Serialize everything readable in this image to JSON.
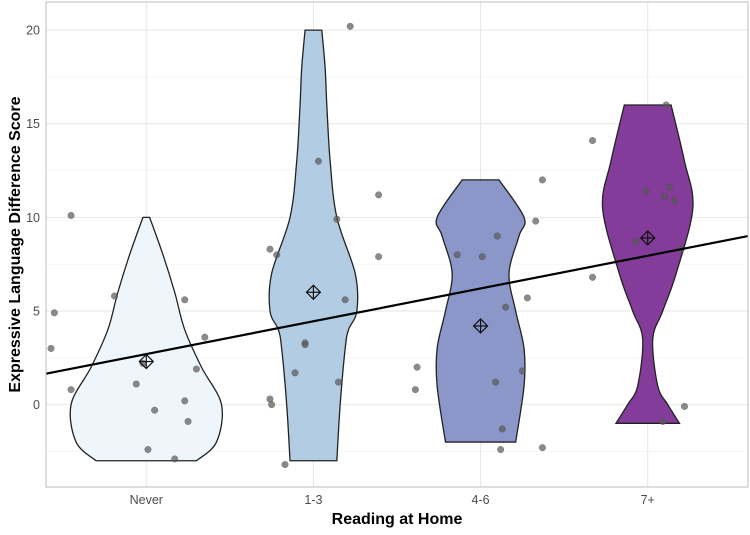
{
  "chart_data": {
    "type": "violin",
    "xlabel": "Reading at Home",
    "ylabel": "Expressive Language Difference Score",
    "categories": [
      "Never",
      "1-3",
      "4-6",
      "7+"
    ],
    "ylim": [
      -4.4,
      21.5
    ],
    "yticks": [
      0,
      5,
      10,
      15,
      20
    ],
    "grid": true,
    "colors": {
      "fills": [
        "#eef6fb",
        "#b2cce3",
        "#8b97c8",
        "#843c9a"
      ],
      "outline": "#222222",
      "points": "#595959",
      "trend_line": "#000000",
      "grid": "#e6e6e6",
      "panel_border": "#bdbdbd"
    },
    "violins": [
      {
        "category": "Never",
        "y": [
          -3,
          -2,
          0,
          2,
          4,
          6,
          8,
          10
        ],
        "half_width": [
          0.3,
          0.42,
          0.45,
          0.33,
          0.23,
          0.17,
          0.1,
          0.02
        ]
      },
      {
        "category": "1-3",
        "y": [
          -3,
          0,
          3,
          4,
          5,
          7,
          10,
          13,
          16,
          18,
          20
        ],
        "half_width": [
          0.14,
          0.16,
          0.19,
          0.21,
          0.26,
          0.25,
          0.14,
          0.1,
          0.08,
          0.07,
          0.05
        ]
      },
      {
        "category": "4-6",
        "y": [
          -2,
          1,
          3,
          5,
          7,
          9,
          10,
          12
        ],
        "half_width": [
          0.21,
          0.26,
          0.26,
          0.21,
          0.17,
          0.23,
          0.26,
          0.11
        ]
      },
      {
        "category": "7+",
        "y": [
          -1,
          0,
          1,
          3.5,
          5,
          7,
          10.5,
          13,
          16
        ],
        "half_width": [
          0.19,
          0.12,
          0.06,
          0.03,
          0.09,
          0.17,
          0.27,
          0.22,
          0.14
        ]
      }
    ],
    "means": [
      {
        "category": "Never",
        "value": 2.3
      },
      {
        "category": "1-3",
        "value": 6.0
      },
      {
        "category": "4-6",
        "value": 4.2
      },
      {
        "category": "7+",
        "value": 8.9
      }
    ],
    "points": [
      {
        "category": "Never",
        "offset": -0.45,
        "value": 10.1
      },
      {
        "category": "Never",
        "offset": -0.55,
        "value": 4.9
      },
      {
        "category": "Never",
        "offset": -0.57,
        "value": 3.0
      },
      {
        "category": "Never",
        "offset": -0.45,
        "value": 0.8
      },
      {
        "category": "Never",
        "offset": -0.19,
        "value": 5.8
      },
      {
        "category": "Never",
        "offset": -0.06,
        "value": 1.1
      },
      {
        "category": "Never",
        "offset": -0.02,
        "value": 2.2
      },
      {
        "category": "Never",
        "offset": 0.05,
        "value": -0.3
      },
      {
        "category": "Never",
        "offset": 0.01,
        "value": -2.4
      },
      {
        "category": "Never",
        "offset": 0.17,
        "value": -2.9
      },
      {
        "category": "Never",
        "offset": 0.23,
        "value": 5.6
      },
      {
        "category": "Never",
        "offset": 0.23,
        "value": 0.2
      },
      {
        "category": "Never",
        "offset": 0.25,
        "value": -0.9
      },
      {
        "category": "Never",
        "offset": 0.3,
        "value": 1.9
      },
      {
        "category": "Never",
        "offset": 0.35,
        "value": 3.6
      },
      {
        "category": "1-3",
        "offset": -0.26,
        "value": 8.3
      },
      {
        "category": "1-3",
        "offset": -0.22,
        "value": 8.0
      },
      {
        "category": "1-3",
        "offset": -0.26,
        "value": 0.3
      },
      {
        "category": "1-3",
        "offset": -0.25,
        "value": 0.0
      },
      {
        "category": "1-3",
        "offset": -0.11,
        "value": 1.7
      },
      {
        "category": "1-3",
        "offset": -0.17,
        "value": -3.2
      },
      {
        "category": "1-3",
        "offset": -0.05,
        "value": 3.3
      },
      {
        "category": "1-3",
        "offset": -0.05,
        "value": 3.2
      },
      {
        "category": "1-3",
        "offset": 0.03,
        "value": 13.0
      },
      {
        "category": "1-3",
        "offset": 0.14,
        "value": 9.9
      },
      {
        "category": "1-3",
        "offset": 0.19,
        "value": 5.6
      },
      {
        "category": "1-3",
        "offset": 0.15,
        "value": 1.2
      },
      {
        "category": "1-3",
        "offset": 0.22,
        "value": 20.2
      },
      {
        "category": "1-3",
        "offset": 0.39,
        "value": 11.2
      },
      {
        "category": "1-3",
        "offset": 0.39,
        "value": 7.9
      },
      {
        "category": "4-6",
        "offset": -0.38,
        "value": 2.0
      },
      {
        "category": "4-6",
        "offset": -0.39,
        "value": 0.8
      },
      {
        "category": "4-6",
        "offset": -0.14,
        "value": 8.0
      },
      {
        "category": "4-6",
        "offset": 0.01,
        "value": 7.9
      },
      {
        "category": "4-6",
        "offset": 0.1,
        "value": 9.0
      },
      {
        "category": "4-6",
        "offset": 0.15,
        "value": 5.2
      },
      {
        "category": "4-6",
        "offset": 0.09,
        "value": 1.2
      },
      {
        "category": "4-6",
        "offset": 0.13,
        "value": -1.3
      },
      {
        "category": "4-6",
        "offset": 0.12,
        "value": -2.4
      },
      {
        "category": "4-6",
        "offset": 0.25,
        "value": 1.8
      },
      {
        "category": "4-6",
        "offset": 0.28,
        "value": 5.7
      },
      {
        "category": "4-6",
        "offset": 0.33,
        "value": 9.8
      },
      {
        "category": "4-6",
        "offset": 0.37,
        "value": 12.0
      },
      {
        "category": "4-6",
        "offset": 0.37,
        "value": -2.3
      },
      {
        "category": "7+",
        "offset": -0.33,
        "value": 14.1
      },
      {
        "category": "7+",
        "offset": -0.33,
        "value": 6.8
      },
      {
        "category": "7+",
        "offset": -0.07,
        "value": 8.7
      },
      {
        "category": "7+",
        "offset": -0.01,
        "value": 11.4
      },
      {
        "category": "7+",
        "offset": 0.1,
        "value": 11.1
      },
      {
        "category": "7+",
        "offset": 0.13,
        "value": 11.6
      },
      {
        "category": "7+",
        "offset": 0.16,
        "value": 10.9
      },
      {
        "category": "7+",
        "offset": 0.2,
        "value": 8.3
      },
      {
        "category": "7+",
        "offset": 0.11,
        "value": 16.0
      },
      {
        "category": "7+",
        "offset": 0.09,
        "value": -0.9
      },
      {
        "category": "7+",
        "offset": 0.22,
        "value": -0.1
      }
    ],
    "trend_line": {
      "x_start": 0.4,
      "y_start": 1.65,
      "x_end": 4.6,
      "y_end": 9.0
    }
  }
}
